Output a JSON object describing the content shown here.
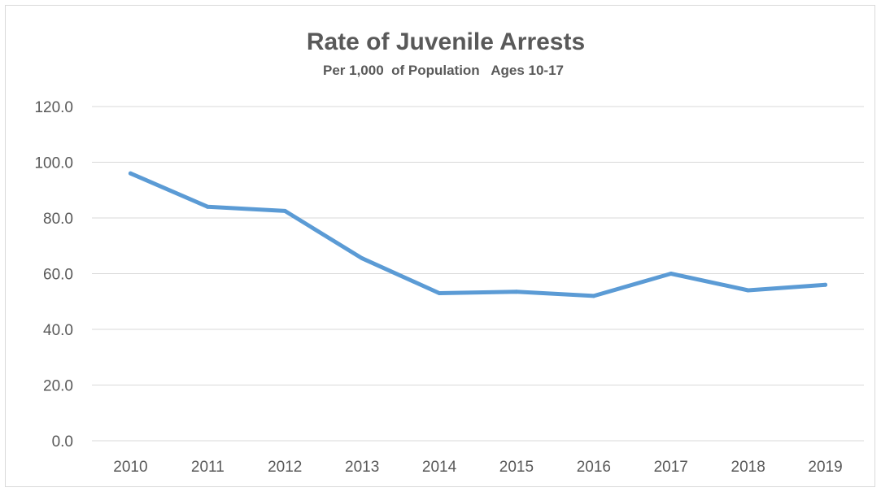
{
  "chart_data": {
    "type": "line",
    "title": "Rate of Juvenile Arrests",
    "subtitle": "Per 1,000  of Population   Ages 10-17",
    "categories": [
      "2010",
      "2011",
      "2012",
      "2013",
      "2014",
      "2015",
      "2016",
      "2017",
      "2018",
      "2019"
    ],
    "series": [
      {
        "values": [
          96.0,
          84.0,
          82.5,
          65.5,
          53.0,
          53.5,
          52.0,
          60.0,
          54.0,
          56.0
        ],
        "color": "#5b9bd5"
      }
    ],
    "xlabel": "",
    "ylabel": "",
    "ylim": [
      0,
      120
    ],
    "yticks": [
      "0.0",
      "20.0",
      "40.0",
      "60.0",
      "80.0",
      "100.0",
      "120.0"
    ],
    "grid": true,
    "legend": "none",
    "gridline_color": "#d9d9d9",
    "text_color": "#595959"
  }
}
